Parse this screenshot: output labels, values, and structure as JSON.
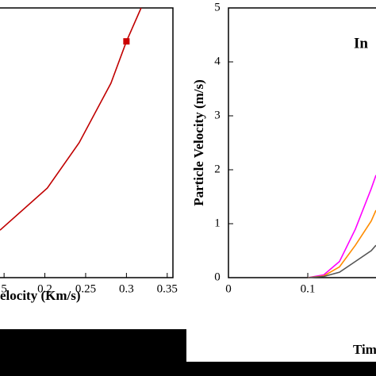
{
  "chart_data": [
    {
      "type": "line",
      "xlabel": "elocity (Km/s)",
      "x": [
        0.145,
        0.203,
        0.242,
        0.281,
        0.3,
        0.318
      ],
      "series": [
        {
          "color": "#c00000",
          "values": [
            0.176,
            0.332,
            0.5,
            0.721,
            0.876,
            1.0
          ]
        }
      ],
      "marker": {
        "x": 0.3,
        "y": 0.876,
        "color": "#cc0000"
      },
      "xlim": [
        0.145,
        0.357
      ],
      "ylim": [
        0,
        1
      ],
      "xticks": [
        {
          "value": 0.15,
          "label": "5"
        },
        0.2,
        0.25,
        0.3,
        0.35
      ]
    },
    {
      "type": "line",
      "ylabel": "Particle Velocity (m/s)",
      "xlabel": "Tim",
      "annotation": "In",
      "x": [
        0.1,
        0.12,
        0.14,
        0.16,
        0.18,
        0.186
      ],
      "series": [
        {
          "color": "#ff00ff",
          "values": [
            0,
            0.05,
            0.3,
            0.9,
            1.65,
            1.9
          ]
        },
        {
          "color": "#ff8c00",
          "values": [
            0,
            0.03,
            0.2,
            0.6,
            1.05,
            1.25
          ]
        },
        {
          "color": "#555555",
          "values": [
            0,
            0.02,
            0.1,
            0.3,
            0.5,
            0.6
          ]
        }
      ],
      "xlim": [
        0,
        0.186
      ],
      "ylim": [
        0,
        5
      ],
      "xticks": [
        0,
        0.1
      ],
      "yticks": [
        0,
        1,
        2,
        3,
        4,
        5
      ]
    }
  ]
}
